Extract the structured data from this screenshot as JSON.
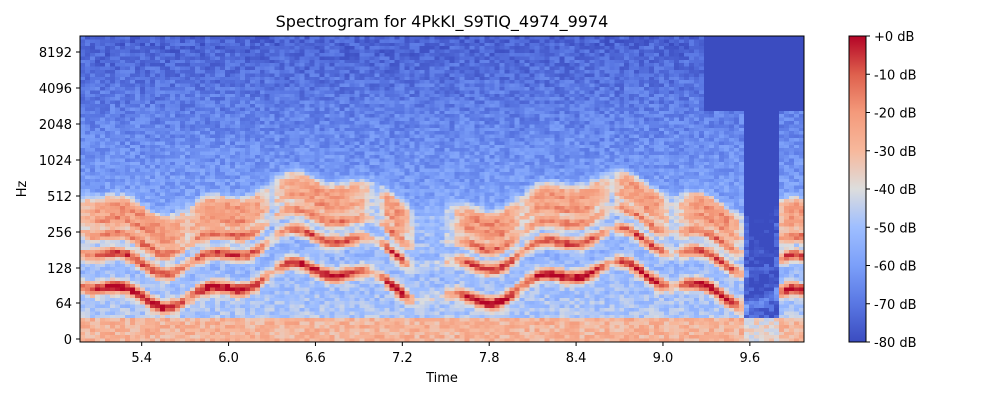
{
  "chart_data": {
    "type": "heatmap",
    "title": "Spectrogram for 4PkKI_S9TIQ_4974_9974",
    "xlabel": "Time",
    "ylabel": "Hz",
    "x_range": [
      4.974,
      9.974
    ],
    "x_ticks": [
      "5.4",
      "6.0",
      "6.6",
      "7.2",
      "7.8",
      "8.4",
      "9.0",
      "9.6"
    ],
    "x_tick_values": [
      5.4,
      6.0,
      6.6,
      7.2,
      7.8,
      8.4,
      9.0,
      9.6
    ],
    "y_ticks": [
      "0",
      "64",
      "128",
      "256",
      "512",
      "1024",
      "2048",
      "4096",
      "8192"
    ],
    "y_scale": "symlog",
    "colormap": "coolwarm",
    "color_range_db": [
      -80,
      0
    ],
    "colorbar_ticks": [
      "+0 dB",
      "-10 dB",
      "-20 dB",
      "-30 dB",
      "-40 dB",
      "-50 dB",
      "-60 dB",
      "-70 dB",
      "-80 dB"
    ],
    "colorbar_values": [
      0,
      -10,
      -20,
      -30,
      -40,
      -50,
      -60,
      -70,
      -80
    ],
    "energy_profile": {
      "description_note": "",
      "high_energy_segments_s": [
        [
          4.99,
          5.7
        ],
        [
          5.75,
          6.25
        ],
        [
          6.35,
          6.95
        ],
        [
          7.1,
          7.2
        ],
        [
          7.6,
          8.0
        ],
        [
          8.05,
          8.6
        ],
        [
          8.7,
          9.0
        ],
        [
          9.15,
          9.5
        ],
        [
          9.85,
          9.974
        ]
      ],
      "silent_segments_s": [
        [
          9.55,
          9.8
        ]
      ]
    }
  },
  "colors": {
    "low": "#3b4cc0",
    "mid": "#dddddd",
    "high": "#b40426"
  }
}
